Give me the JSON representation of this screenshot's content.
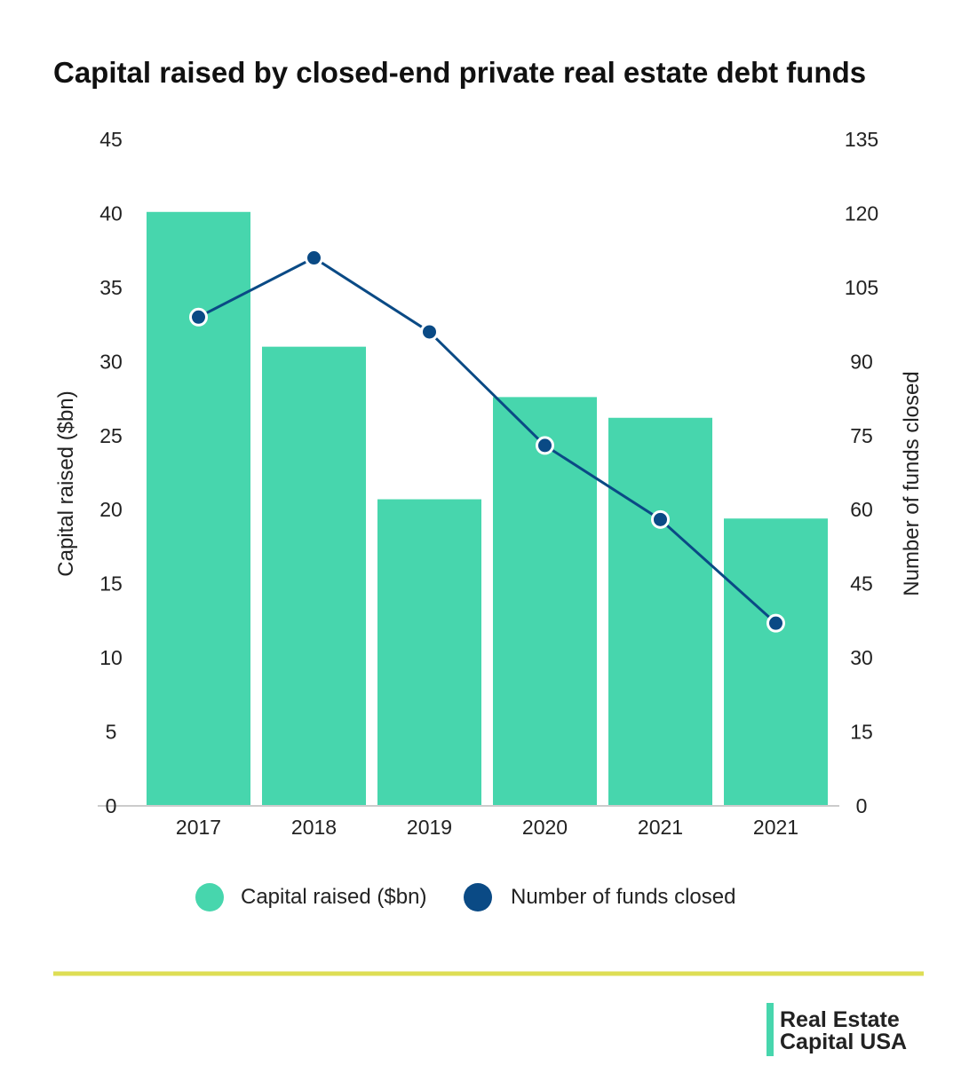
{
  "chart_data": {
    "type": "bar",
    "title": "Capital raised by closed-end private real estate debt funds",
    "categories": [
      "2017",
      "2018",
      "2019",
      "2020",
      "2021",
      "2021"
    ],
    "series": [
      {
        "name": "Capital raised ($bn)",
        "type": "bar",
        "axis": "left",
        "color": "#47d6ad",
        "values": [
          40.1,
          31.0,
          20.7,
          27.6,
          26.2,
          19.4
        ]
      },
      {
        "name": "Number of funds closed",
        "type": "line",
        "axis": "right",
        "color": "#0a4a85",
        "values": [
          99,
          111,
          96,
          73,
          58,
          37
        ]
      }
    ],
    "ylabel": "Capital raised ($bn)",
    "ylabel_right": "Number of funds closed",
    "ylim": [
      0,
      45
    ],
    "ylim_right": [
      0,
      135
    ],
    "yticks": [
      "0",
      "5",
      "10",
      "15",
      "20",
      "25",
      "30",
      "35",
      "40",
      "45"
    ],
    "yticks_right": [
      "0",
      "15",
      "30",
      "45",
      "60",
      "75",
      "90",
      "105",
      "120",
      "135"
    ],
    "grid": false,
    "legend_placement": "bottom"
  },
  "branding": {
    "logo_line1": "Real Estate",
    "logo_line2": "Capital USA",
    "accent_line_color": "#dede55",
    "logo_bar_color": "#47d6ad"
  }
}
